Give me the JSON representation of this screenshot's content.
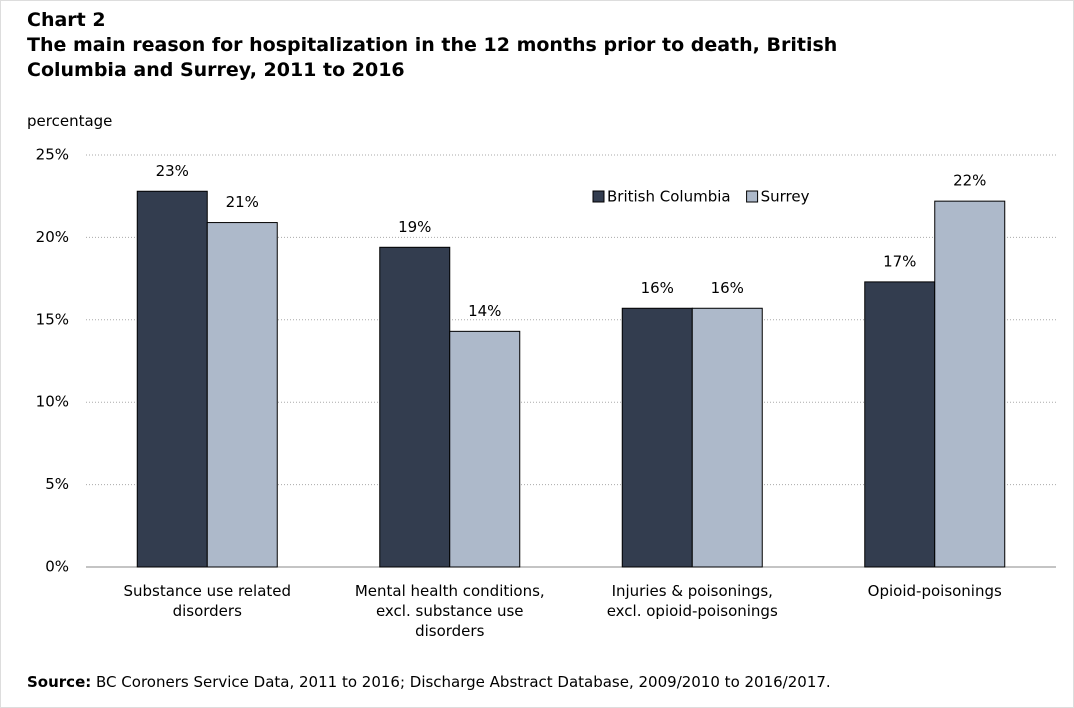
{
  "chart_data": {
    "type": "bar",
    "chart_label": "Chart 2",
    "title": "The main reason for hospitalization in the 12 months prior to death, British Columbia and Surrey, 2011 to 2016",
    "y_axis_label": "percentage",
    "categories": [
      "Substance use related disorders",
      "Mental health conditions, excl. substance use disorders",
      "Injuries & poisonings, excl. opioid-poisonings",
      "Opioid-poisonings"
    ],
    "series": [
      {
        "name": "British Columbia",
        "color": "#333d4f",
        "values": [
          22.8,
          19.4,
          15.7,
          17.3
        ],
        "value_labels": [
          "23%",
          "19%",
          "16%",
          "17%"
        ]
      },
      {
        "name": "Surrey",
        "color": "#adb9ca",
        "values": [
          20.9,
          14.3,
          15.7,
          22.2
        ],
        "value_labels": [
          "21%",
          "14%",
          "16%",
          "22%"
        ]
      }
    ],
    "ylim": [
      0,
      25
    ],
    "yticks": [
      {
        "value": 0,
        "label": "0%"
      },
      {
        "value": 5,
        "label": "5%"
      },
      {
        "value": 10,
        "label": "10%"
      },
      {
        "value": 15,
        "label": "15%"
      },
      {
        "value": 20,
        "label": "20%"
      },
      {
        "value": 25,
        "label": "25%"
      }
    ],
    "grid": true,
    "legend": "top-right",
    "source_label": "Source:",
    "source": "BC Coroners Service Data, 2011 to 2016; Discharge Abstract Database, 2009/2010 to 2016/2017."
  }
}
